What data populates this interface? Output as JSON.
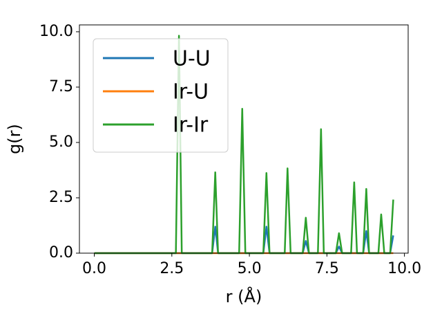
{
  "chart_data": {
    "type": "line",
    "xlabel": "r (Å)",
    "ylabel": "g(r)",
    "x": [
      0,
      2.63,
      2.73,
      2.82,
      3.8,
      3.9,
      3.99,
      4.67,
      4.77,
      4.87,
      5.45,
      5.55,
      5.65,
      6.14,
      6.23,
      6.33,
      6.72,
      6.82,
      6.92,
      7.21,
      7.31,
      7.4,
      7.79,
      7.89,
      7.99,
      8.28,
      8.38,
      8.47,
      8.67,
      8.77,
      8.86,
      9.16,
      9.25,
      9.35,
      9.54,
      9.64
    ],
    "series": [
      {
        "name": "U-U",
        "color": "#1f77b4",
        "values": [
          0,
          0,
          0,
          0,
          0,
          1.2,
          0,
          0,
          0,
          0,
          0,
          1.2,
          0,
          0,
          0,
          0,
          0,
          0.55,
          0,
          0,
          0,
          0,
          0,
          0.3,
          0,
          0,
          0,
          0,
          0,
          1.0,
          0,
          0,
          0,
          0,
          0,
          0.8
        ]
      },
      {
        "name": "Ir-U",
        "color": "#ff7f0e",
        "values": [
          0,
          0,
          0,
          0,
          0,
          0,
          0,
          0,
          0,
          0,
          0,
          0,
          0,
          0,
          0,
          0,
          0,
          0,
          0,
          0,
          0,
          0,
          0,
          0,
          0,
          0,
          0,
          0,
          0,
          0,
          0,
          0,
          0,
          0,
          0,
          0
        ]
      },
      {
        "name": "Ir-Ir",
        "color": "#2ca02c",
        "values": [
          0,
          0,
          9.82,
          0,
          0,
          3.65,
          0,
          0,
          6.52,
          0,
          0,
          3.62,
          0,
          0,
          3.83,
          0,
          0,
          1.6,
          0,
          0,
          5.6,
          0,
          0,
          0.9,
          0,
          0,
          3.2,
          0,
          0,
          2.9,
          0,
          0,
          1.75,
          0,
          0,
          2.42
        ]
      }
    ],
    "xlim": [
      -0.48,
      10.12
    ],
    "ylim": [
      0,
      10.31
    ],
    "xticks": [
      {
        "value": 0,
        "label": "0.0"
      },
      {
        "value": 2.5,
        "label": "2.5"
      },
      {
        "value": 5,
        "label": "5.0"
      },
      {
        "value": 7.5,
        "label": "7.5"
      },
      {
        "value": 10,
        "label": "10.0"
      }
    ],
    "yticks": [
      {
        "value": 0,
        "label": "0.0"
      },
      {
        "value": 2.5,
        "label": "2.5"
      },
      {
        "value": 5,
        "label": "5.0"
      },
      {
        "value": 7.5,
        "label": "7.5"
      },
      {
        "value": 10,
        "label": "10.0"
      }
    ],
    "grid": false,
    "legend": "upper left"
  }
}
